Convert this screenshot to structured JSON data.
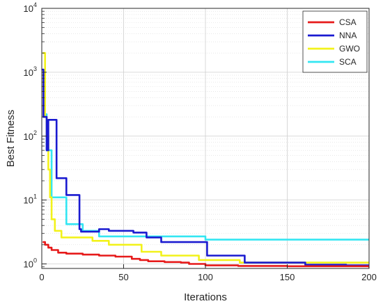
{
  "chart_data": {
    "type": "line",
    "xlabel": "Iterations",
    "ylabel": "Best Fitness",
    "xlim": [
      0,
      200
    ],
    "ylim": [
      0.85,
      10000
    ],
    "yscale": "log",
    "grid": true,
    "legend_position": "top-right",
    "x_ticks": [
      "0",
      "50",
      "100",
      "150",
      "200"
    ],
    "y_ticks": [
      {
        "base": "10",
        "exp": "0",
        "value": 1
      },
      {
        "base": "10",
        "exp": "1",
        "value": 10
      },
      {
        "base": "10",
        "exp": "2",
        "value": 100
      },
      {
        "base": "10",
        "exp": "3",
        "value": 1000
      },
      {
        "base": "10",
        "exp": "4",
        "value": 10000
      }
    ],
    "series": [
      {
        "name": "SCA",
        "color": "#33e6f2",
        "points": [
          [
            1,
            200
          ],
          [
            2,
            220
          ],
          [
            3,
            60
          ],
          [
            4,
            60
          ],
          [
            5,
            60
          ],
          [
            6,
            11
          ],
          [
            10,
            11
          ],
          [
            11,
            11
          ],
          [
            14,
            11
          ],
          [
            15,
            4.2
          ],
          [
            24,
            4.2
          ],
          [
            25,
            3.3
          ],
          [
            34,
            3.3
          ],
          [
            35,
            2.7
          ],
          [
            60,
            2.7
          ],
          [
            70,
            2.7
          ],
          [
            85,
            2.7
          ],
          [
            99,
            2.7
          ],
          [
            100,
            2.4
          ],
          [
            200,
            2.4
          ]
        ]
      },
      {
        "name": "GWO",
        "color": "#f2f21a",
        "points": [
          [
            1,
            2000
          ],
          [
            2,
            200
          ],
          [
            3,
            100
          ],
          [
            4,
            30
          ],
          [
            5,
            11
          ],
          [
            6,
            5
          ],
          [
            7,
            5
          ],
          [
            8,
            3.3
          ],
          [
            10,
            3.3
          ],
          [
            11,
            3.3
          ],
          [
            12,
            2.6
          ],
          [
            30,
            2.6
          ],
          [
            31,
            2.3
          ],
          [
            40,
            2.3
          ],
          [
            41,
            2.0
          ],
          [
            60,
            2.0
          ],
          [
            61,
            1.55
          ],
          [
            72,
            1.55
          ],
          [
            73,
            1.35
          ],
          [
            95,
            1.35
          ],
          [
            96,
            1.15
          ],
          [
            120,
            1.15
          ],
          [
            121,
            1.05
          ],
          [
            200,
            1.05
          ]
        ]
      },
      {
        "name": "NNA",
        "color": "#1a1ad0",
        "points": [
          [
            0.5,
            1100
          ],
          [
            1,
            200
          ],
          [
            2,
            200
          ],
          [
            3,
            60
          ],
          [
            4,
            180
          ],
          [
            8,
            180
          ],
          [
            9,
            22
          ],
          [
            14,
            22
          ],
          [
            15,
            12
          ],
          [
            22,
            12
          ],
          [
            23,
            3.5
          ],
          [
            24,
            3.2
          ],
          [
            34,
            3.2
          ],
          [
            35,
            3.5
          ],
          [
            40,
            3.5
          ],
          [
            41,
            3.3
          ],
          [
            55,
            3.3
          ],
          [
            56,
            3.1
          ],
          [
            63,
            3.1
          ],
          [
            64,
            2.6
          ],
          [
            72,
            2.6
          ],
          [
            73,
            2.2
          ],
          [
            100,
            2.2
          ],
          [
            101,
            1.35
          ],
          [
            123,
            1.35
          ],
          [
            124,
            1.05
          ],
          [
            160,
            1.05
          ],
          [
            161,
            0.97
          ],
          [
            185,
            0.97
          ],
          [
            186,
            0.95
          ],
          [
            200,
            0.95
          ]
        ]
      },
      {
        "name": "CSA",
        "color": "#e61a1a",
        "points": [
          [
            1,
            2.2
          ],
          [
            2,
            2.0
          ],
          [
            4,
            1.8
          ],
          [
            6,
            1.65
          ],
          [
            10,
            1.5
          ],
          [
            15,
            1.45
          ],
          [
            25,
            1.4
          ],
          [
            35,
            1.35
          ],
          [
            45,
            1.3
          ],
          [
            55,
            1.2
          ],
          [
            60,
            1.15
          ],
          [
            65,
            1.1
          ],
          [
            75,
            1.07
          ],
          [
            85,
            1.05
          ],
          [
            90,
            1.0
          ],
          [
            100,
            0.95
          ],
          [
            120,
            0.93
          ],
          [
            150,
            0.92
          ],
          [
            200,
            0.9
          ]
        ]
      }
    ]
  }
}
